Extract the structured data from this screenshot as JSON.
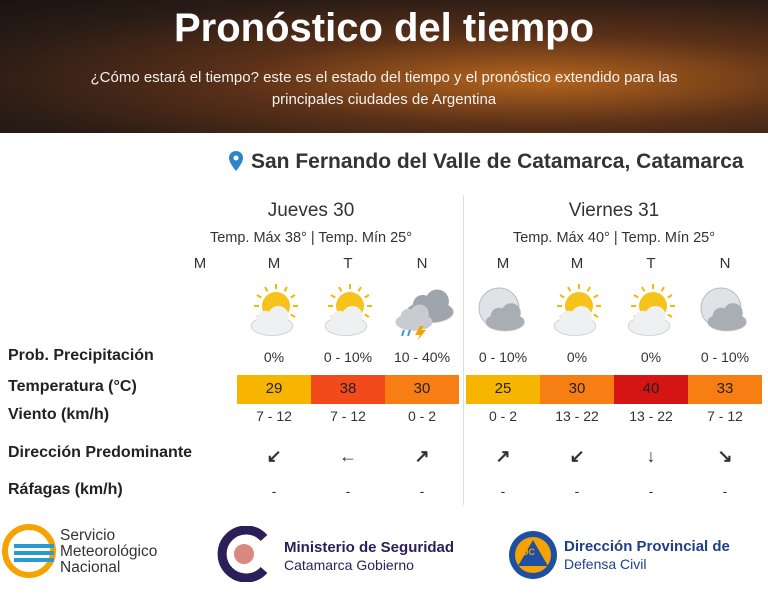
{
  "header": {
    "title": "Pronóstico del tiempo",
    "subtitle": "¿Cómo estará el tiempo? este es el estado del tiempo y el pronóstico extendido para las principales ciudades de Argentina"
  },
  "location": "San Fernando del Valle de Catamarca, Catamarca",
  "row_labels": [
    "Prob. Precipitación",
    "Temperatura (°C)",
    "Viento (km/h)",
    "Dirección Predominante",
    "Ráfagas (km/h)"
  ],
  "days": [
    {
      "name": "Jueves 30",
      "temps": "Temp. Máx 38° | Temp. Mín 25°",
      "periods": [
        "M",
        "M",
        "T",
        "N"
      ],
      "slots": [
        null,
        {
          "icon": "sun-cloud",
          "precip": "0%",
          "temp": 29,
          "temp_color": "#f8b500",
          "wind": "7 - 12",
          "direction": "↙",
          "gust": "-"
        },
        {
          "icon": "sun-cloud",
          "precip": "0 - 10%",
          "temp": 38,
          "temp_color": "#f34a1c",
          "wind": "7 - 12",
          "direction": "←",
          "gust": "-"
        },
        {
          "icon": "storm",
          "precip": "10 - 40%",
          "temp": 30,
          "temp_color": "#f77e12",
          "wind": "0 - 2",
          "direction": "↗",
          "gust": "-"
        }
      ]
    },
    {
      "name": "Viernes 31",
      "temps": "Temp. Máx 40° | Temp. Mín 25°",
      "periods": [
        "M",
        "M",
        "T",
        "N"
      ],
      "slots": [
        {
          "icon": "moon-cloud",
          "precip": "0 - 10%",
          "temp": 25,
          "temp_color": "#f8b500",
          "wind": "0 - 2",
          "direction": "↗",
          "gust": "-"
        },
        {
          "icon": "sun-cloud",
          "precip": "0%",
          "temp": 30,
          "temp_color": "#f77e12",
          "wind": "13 - 22",
          "direction": "↙",
          "gust": "-"
        },
        {
          "icon": "sun-cloud",
          "precip": "0%",
          "temp": 40,
          "temp_color": "#d51414",
          "wind": "13 - 22",
          "direction": "↓",
          "gust": "-"
        },
        {
          "icon": "moon-cloud",
          "precip": "0 - 10%",
          "temp": 33,
          "temp_color": "#f77e12",
          "wind": "7 - 12",
          "direction": "↘",
          "gust": "-"
        }
      ]
    }
  ],
  "footer": {
    "smn": "Servicio Meteorológico Nacional",
    "ministry": "Ministerio de Seguridad",
    "ministry_sub": "Catamarca Gobierno",
    "civil": "Dirección Provincial de",
    "civil_sub": "Defensa Civil",
    "civil_badge": "DC"
  }
}
